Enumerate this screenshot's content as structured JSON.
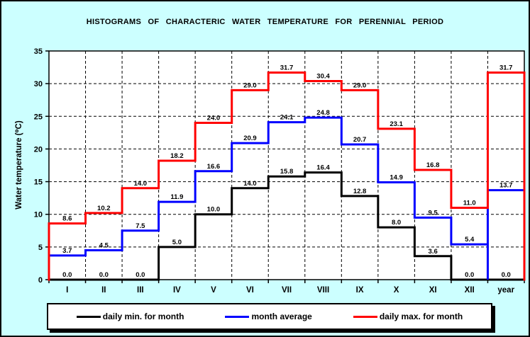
{
  "title": "HISTOGRAMS OF CHARACTERIC WATER TEMPERATURE FOR PERENNIAL PERIOD",
  "chart_data": {
    "type": "line",
    "style": "step-histogram",
    "categories": [
      "I",
      "II",
      "III",
      "IV",
      "V",
      "VI",
      "VII",
      "VIII",
      "IX",
      "X",
      "XI",
      "XII",
      "year"
    ],
    "series": [
      {
        "name": "daily min. for month",
        "color": "#000000",
        "values": [
          0.0,
          0.0,
          0.0,
          5.0,
          10.0,
          14.0,
          15.8,
          16.4,
          12.8,
          8.0,
          3.6,
          0.0,
          0.0
        ],
        "starts_on_axis": true,
        "ends_on_axis": false,
        "drop_to_axis_before_last": false
      },
      {
        "name": "month average",
        "color": "#0000ff",
        "values": [
          3.7,
          4.5,
          7.5,
          11.9,
          16.6,
          20.9,
          24.1,
          24.8,
          20.7,
          14.9,
          9.5,
          5.4,
          13.7
        ],
        "starts_on_axis": false,
        "ends_on_axis": false,
        "drop_to_axis_before_last": true
      },
      {
        "name": "daily max. for month",
        "color": "#ff0000",
        "values": [
          8.6,
          10.2,
          14.0,
          18.2,
          24.0,
          29.0,
          31.7,
          30.4,
          29.0,
          23.1,
          16.8,
          11.0,
          31.7
        ],
        "starts_on_axis": true,
        "ends_on_axis": true,
        "drop_to_axis_before_last": false
      }
    ],
    "xlabel": "",
    "ylabel": "Water temperature (⁰C)",
    "ylim": [
      0,
      35
    ],
    "ytick_step": 5,
    "grid": true,
    "legend_position": "bottom"
  },
  "colors": {
    "background": "#ccffff",
    "plot_background": "#ffffff",
    "axis": "#000000",
    "gridline": "#000000",
    "value_label": "#000000"
  }
}
